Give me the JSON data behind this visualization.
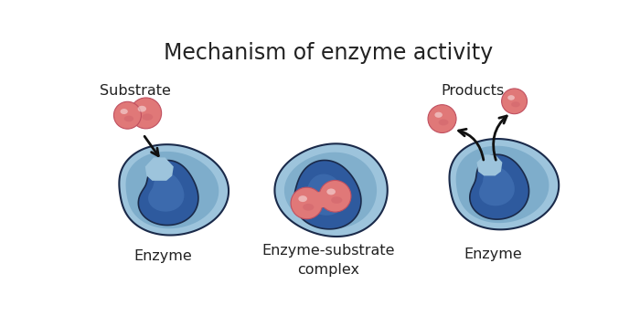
{
  "title": "Mechanism of enzyme activity",
  "title_fontsize": 17,
  "title_color": "#222222",
  "background_color": "#ffffff",
  "labels": {
    "substrate": "Substrate",
    "enzyme1": "Enzyme",
    "enzyme_substrate": "Enzyme-substrate\ncomplex",
    "enzyme2": "Enzyme",
    "products": "Products"
  },
  "label_fontsize": 11.5,
  "enzyme_outer_color_light": "#8ab4d4",
  "enzyme_outer_color_dark": "#4a7aaa",
  "enzyme_inner_color": "#2a4a8a",
  "enzyme_edge_color": "#1a2a4a",
  "substrate_color": "#e07878",
  "substrate_highlight": "#f0a0a0",
  "substrate_shadow": "#c05060"
}
